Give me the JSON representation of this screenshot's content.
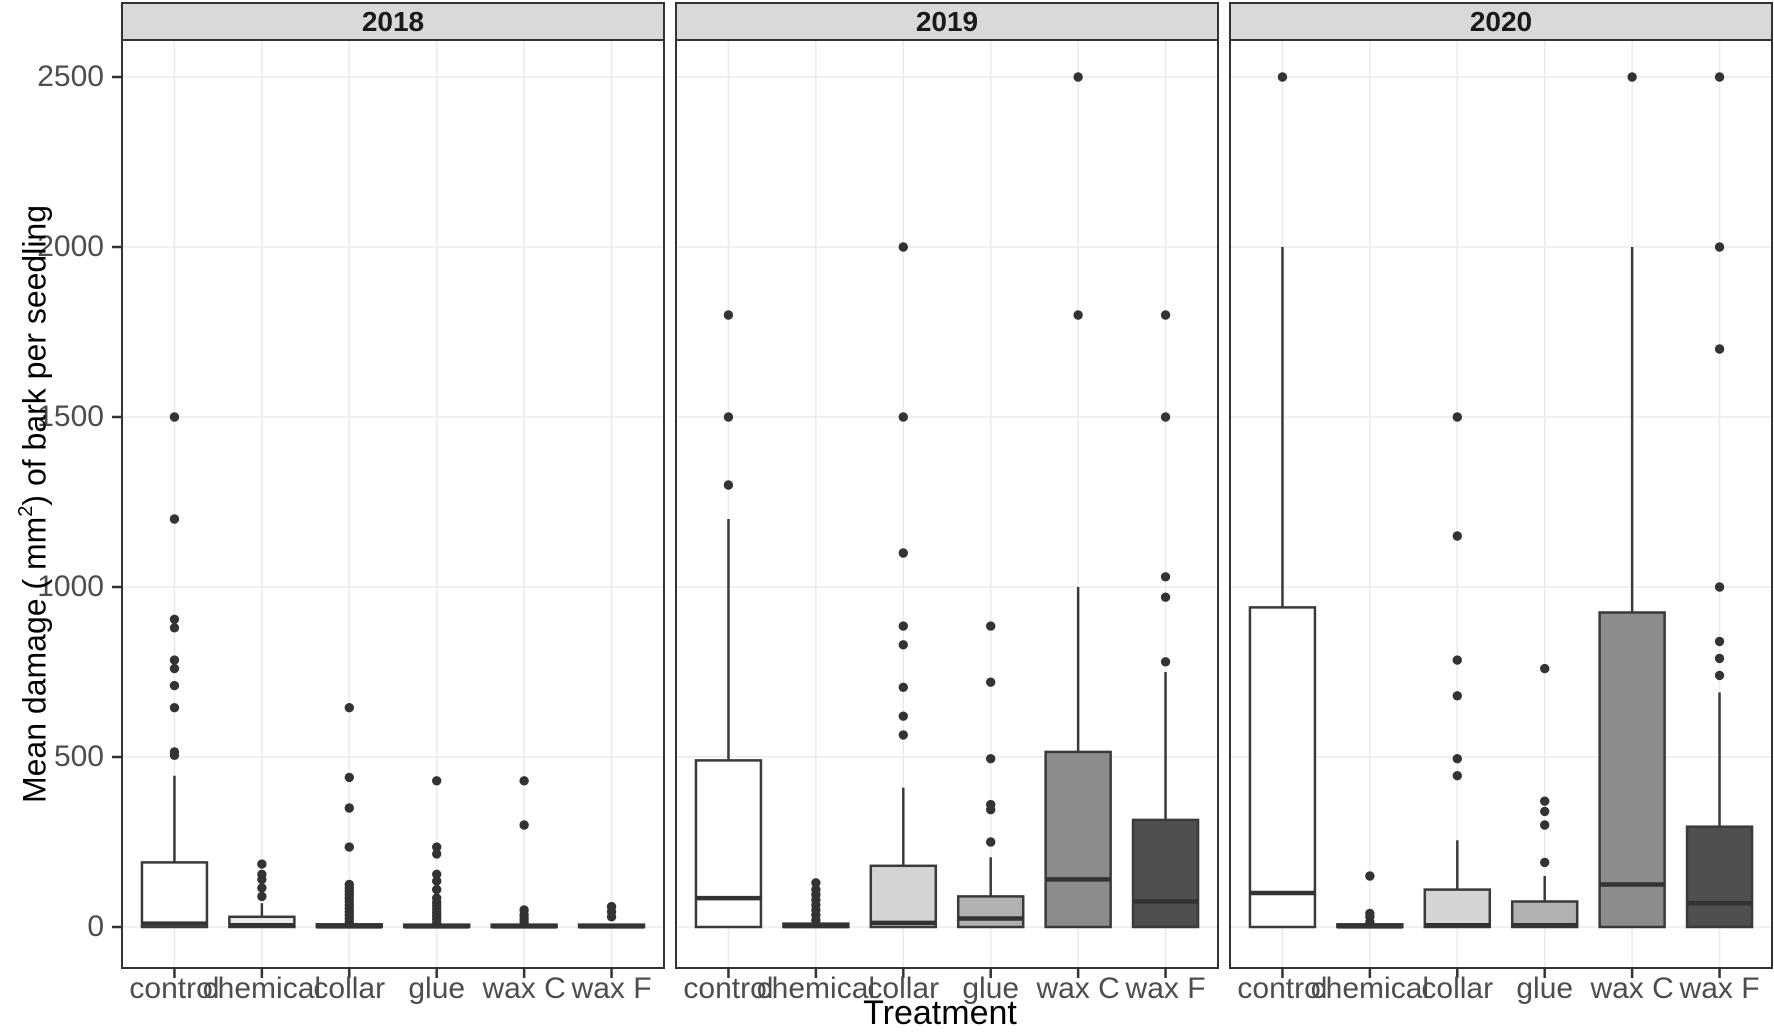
{
  "axis": {
    "x_title": "Treatment",
    "y_title_prefix": "Mean damage ( mm",
    "y_title_sup": "2",
    "y_title_suffix": ") of bark per seedling"
  },
  "colors": {
    "strip_bg": "#d9d9d9",
    "strip_text": "#1a1a1a",
    "panel_border": "#333333",
    "panel_bg": "#ffffff",
    "grid": "#ebebeb",
    "box_stroke": "#3a3a3a",
    "median": "#333333",
    "outlier": "#333333",
    "tick_mark": "#333333",
    "tick_text": "#4d4d4d"
  },
  "chart_data": {
    "type": "boxplot",
    "title": "",
    "facets": [
      "2018",
      "2019",
      "2020"
    ],
    "categories": [
      "control",
      "chemical",
      "collar",
      "glue",
      "wax C",
      "wax F"
    ],
    "xlabel": "Treatment",
    "ylabel": "Mean damage ( mm2) of bark per seedling",
    "y_ticks": [
      0,
      500,
      1000,
      1500,
      2000,
      2500
    ],
    "ylim": [
      -120,
      2610
    ],
    "grid": "major-only",
    "legend": "none",
    "box_fills": [
      "#ffffff",
      "#ebebeb",
      "#d4d4d4",
      "#b1b1b1",
      "#8c8c8c",
      "#4f4f4f"
    ],
    "boxes": [
      {
        "facet": "2018",
        "category": "control",
        "q1": 0,
        "median": 10,
        "q3": 190,
        "whisker_low": 0,
        "whisker_high": 445,
        "outliers": [
          505,
          515,
          645,
          710,
          760,
          785,
          880,
          905,
          1200,
          1500
        ]
      },
      {
        "facet": "2018",
        "category": "chemical",
        "q1": 0,
        "median": 5,
        "q3": 30,
        "whisker_low": 0,
        "whisker_high": 70,
        "outliers": [
          90,
          115,
          140,
          155,
          185
        ]
      },
      {
        "facet": "2018",
        "category": "collar",
        "q1": 0,
        "median": 2,
        "q3": 8,
        "whisker_low": 0,
        "whisker_high": 10,
        "outliers": [
          15,
          25,
          35,
          45,
          55,
          65,
          75,
          85,
          95,
          105,
          115,
          125,
          235,
          350,
          440,
          645
        ]
      },
      {
        "facet": "2018",
        "category": "glue",
        "q1": 0,
        "median": 2,
        "q3": 7,
        "whisker_low": 0,
        "whisker_high": 9,
        "outliers": [
          12,
          22,
          32,
          42,
          52,
          62,
          72,
          85,
          110,
          135,
          155,
          215,
          235,
          430
        ]
      },
      {
        "facet": "2018",
        "category": "wax C",
        "q1": 0,
        "median": 2,
        "q3": 7,
        "whisker_low": 0,
        "whisker_high": 9,
        "outliers": [
          15,
          25,
          35,
          50,
          300,
          430
        ]
      },
      {
        "facet": "2018",
        "category": "wax F",
        "q1": 0,
        "median": 2,
        "q3": 7,
        "whisker_low": 0,
        "whisker_high": 9,
        "outliers": [
          30,
          45,
          60
        ]
      },
      {
        "facet": "2019",
        "category": "control",
        "q1": 0,
        "median": 85,
        "q3": 490,
        "whisker_low": 0,
        "whisker_high": 1200,
        "outliers": [
          1300,
          1500,
          1800
        ]
      },
      {
        "facet": "2019",
        "category": "chemical",
        "q1": 0,
        "median": 3,
        "q3": 10,
        "whisker_low": 0,
        "whisker_high": 12,
        "outliers": [
          20,
          35,
          50,
          65,
          80,
          95,
          110,
          130
        ]
      },
      {
        "facet": "2019",
        "category": "collar",
        "q1": 0,
        "median": 12,
        "q3": 180,
        "whisker_low": 0,
        "whisker_high": 410,
        "outliers": [
          565,
          620,
          705,
          830,
          885,
          1100,
          1500,
          2000
        ]
      },
      {
        "facet": "2019",
        "category": "glue",
        "q1": 0,
        "median": 25,
        "q3": 90,
        "whisker_low": 0,
        "whisker_high": 205,
        "outliers": [
          250,
          345,
          360,
          495,
          720,
          885
        ]
      },
      {
        "facet": "2019",
        "category": "wax C",
        "q1": 0,
        "median": 140,
        "q3": 515,
        "whisker_low": 0,
        "whisker_high": 1000,
        "outliers": [
          1800,
          2500
        ]
      },
      {
        "facet": "2019",
        "category": "wax F",
        "q1": 0,
        "median": 75,
        "q3": 315,
        "whisker_low": 0,
        "whisker_high": 750,
        "outliers": [
          780,
          970,
          1030,
          1500,
          1800
        ]
      },
      {
        "facet": "2020",
        "category": "control",
        "q1": 0,
        "median": 100,
        "q3": 940,
        "whisker_low": 0,
        "whisker_high": 2000,
        "outliers": [
          2500
        ]
      },
      {
        "facet": "2020",
        "category": "chemical",
        "q1": 0,
        "median": 2,
        "q3": 8,
        "whisker_low": 0,
        "whisker_high": 10,
        "outliers": [
          15,
          30,
          40,
          150
        ]
      },
      {
        "facet": "2020",
        "category": "collar",
        "q1": 0,
        "median": 5,
        "q3": 110,
        "whisker_low": 0,
        "whisker_high": 255,
        "outliers": [
          445,
          495,
          680,
          785,
          1150,
          1500
        ]
      },
      {
        "facet": "2020",
        "category": "glue",
        "q1": 0,
        "median": 5,
        "q3": 75,
        "whisker_low": 0,
        "whisker_high": 150,
        "outliers": [
          190,
          300,
          340,
          370,
          760
        ]
      },
      {
        "facet": "2020",
        "category": "wax C",
        "q1": 0,
        "median": 125,
        "q3": 925,
        "whisker_low": 0,
        "whisker_high": 2000,
        "outliers": [
          2500
        ]
      },
      {
        "facet": "2020",
        "category": "wax F",
        "q1": 0,
        "median": 70,
        "q3": 295,
        "whisker_low": 0,
        "whisker_high": 690,
        "outliers": [
          740,
          790,
          840,
          1000,
          1700,
          2000,
          2500
        ]
      }
    ]
  }
}
